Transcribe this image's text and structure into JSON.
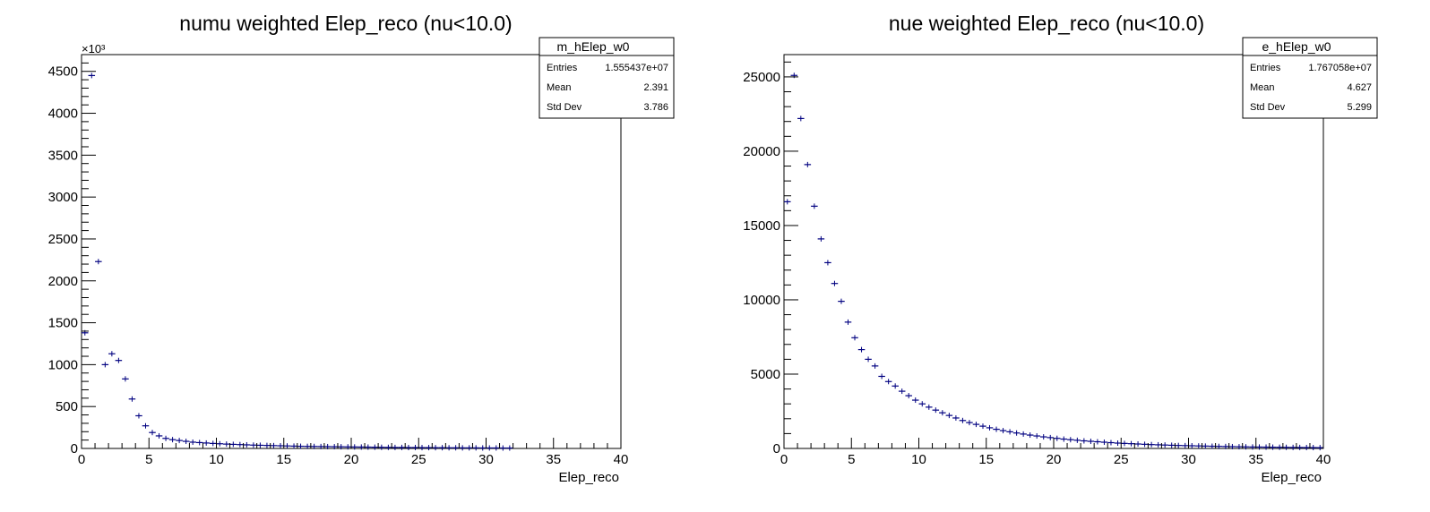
{
  "chart_data": [
    {
      "type": "histogram",
      "title": "numu weighted Elep_reco (nu<10.0)",
      "xlabel": "Elep_reco",
      "ylabel": "",
      "exponent_label": "×10³",
      "xlim": [
        0,
        40
      ],
      "ylim": [
        0,
        4700
      ],
      "xticks": [
        0,
        5,
        10,
        15,
        20,
        25,
        30,
        35,
        40
      ],
      "yticks": [
        0,
        500,
        1000,
        1500,
        2000,
        2500,
        3000,
        3500,
        4000,
        4500
      ],
      "bin_width": 0.5,
      "series": [
        {
          "color": "#000080",
          "values": [
            1380,
            4450,
            2230,
            1000,
            1130,
            1050,
            830,
            590,
            390,
            270,
            190,
            150,
            120,
            105,
            95,
            85,
            75,
            70,
            65,
            60,
            56,
            52,
            49,
            46,
            43,
            40,
            38,
            36,
            34,
            32,
            30,
            28,
            26,
            25,
            24,
            23,
            22,
            21,
            20,
            19,
            18,
            17,
            16,
            15,
            14,
            13,
            12,
            12,
            11,
            11,
            10,
            10,
            9,
            9,
            8,
            8,
            7,
            7,
            7,
            6,
            6,
            6,
            5,
            5
          ]
        }
      ],
      "stats": {
        "name": "m_hElep_w0",
        "rows": [
          {
            "label": "Entries",
            "value": "1.555437e+07"
          },
          {
            "label": "Mean",
            "value": "2.391"
          },
          {
            "label": "Std Dev",
            "value": "3.786"
          }
        ]
      }
    },
    {
      "type": "histogram",
      "title": "nue weighted Elep_reco (nu<10.0)",
      "xlabel": "Elep_reco",
      "ylabel": "",
      "exponent_label": "",
      "xlim": [
        0,
        40
      ],
      "ylim": [
        0,
        26500
      ],
      "xticks": [
        0,
        5,
        10,
        15,
        20,
        25,
        30,
        35,
        40
      ],
      "yticks": [
        0,
        5000,
        10000,
        15000,
        20000,
        25000
      ],
      "bin_width": 0.5,
      "series": [
        {
          "color": "#000080",
          "values": [
            16600,
            25100,
            22200,
            19100,
            16300,
            14100,
            12500,
            11100,
            9900,
            8500,
            7450,
            6650,
            6000,
            5550,
            4850,
            4500,
            4200,
            3850,
            3550,
            3250,
            3000,
            2780,
            2580,
            2400,
            2220,
            2050,
            1880,
            1740,
            1620,
            1500,
            1390,
            1290,
            1200,
            1120,
            1040,
            970,
            900,
            840,
            780,
            730,
            680,
            630,
            590,
            550,
            510,
            480,
            450,
            420,
            390,
            360,
            340,
            320,
            300,
            280,
            260,
            245,
            230,
            215,
            200,
            190,
            180,
            170,
            160,
            150,
            140,
            132,
            124,
            116,
            108,
            100,
            95,
            90,
            85,
            80,
            75,
            70,
            66,
            62,
            58,
            54
          ]
        }
      ],
      "stats": {
        "name": "e_hElep_w0",
        "rows": [
          {
            "label": "Entries",
            "value": "1.767058e+07"
          },
          {
            "label": "Mean",
            "value": "4.627"
          },
          {
            "label": "Std Dev",
            "value": "5.299"
          }
        ]
      }
    }
  ]
}
